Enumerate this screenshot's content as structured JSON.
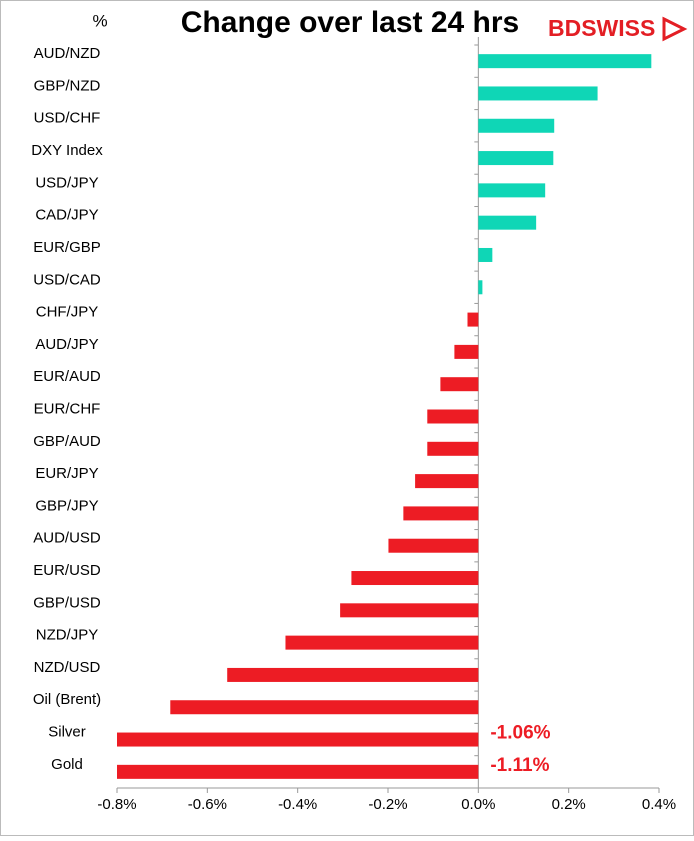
{
  "chart_data": {
    "type": "hbar",
    "title": "Change over last 24 hrs",
    "unit_label": "%",
    "logo": "BDSWISS",
    "categories": [
      "AUD/NZD",
      "GBP/NZD",
      "USD/CHF",
      "DXY Index",
      "USD/JPY",
      "CAD/JPY",
      "EUR/GBP",
      "USD/CAD",
      "CHF/JPY",
      "AUD/JPY",
      "EUR/AUD",
      "EUR/CHF",
      "GBP/AUD",
      "EUR/JPY",
      "GBP/JPY",
      "AUD/USD",
      "EUR/USD",
      "GBP/USD",
      "NZD/JPY",
      "NZD/USD",
      "Oil (Brent)",
      "Silver",
      "Gold"
    ],
    "values": [
      0.383,
      0.264,
      0.168,
      0.166,
      0.148,
      0.128,
      0.031,
      0.009,
      -0.024,
      -0.053,
      -0.084,
      -0.113,
      -0.113,
      -0.14,
      -0.166,
      -0.199,
      -0.281,
      -0.306,
      -0.427,
      -0.556,
      -0.682,
      -1.06,
      -1.11
    ],
    "value_labels": [
      null,
      null,
      null,
      null,
      null,
      null,
      null,
      null,
      null,
      null,
      null,
      null,
      null,
      null,
      null,
      null,
      null,
      null,
      null,
      null,
      null,
      "-1.06%",
      "-1.11%"
    ],
    "positive_color": "#0fd6b6",
    "negative_color": "#ed1c24",
    "xlim": [
      -0.8,
      0.4
    ],
    "xticks": [
      {
        "value": -0.8,
        "label": "-0.8%"
      },
      {
        "value": -0.6,
        "label": "-0.6%"
      },
      {
        "value": -0.4,
        "label": "-0.4%"
      },
      {
        "value": -0.2,
        "label": "-0.2%"
      },
      {
        "value": 0,
        "label": "0.0%"
      },
      {
        "value": 0.2,
        "label": "0.2%"
      },
      {
        "value": 0.4,
        "label": "0.4%"
      }
    ]
  }
}
